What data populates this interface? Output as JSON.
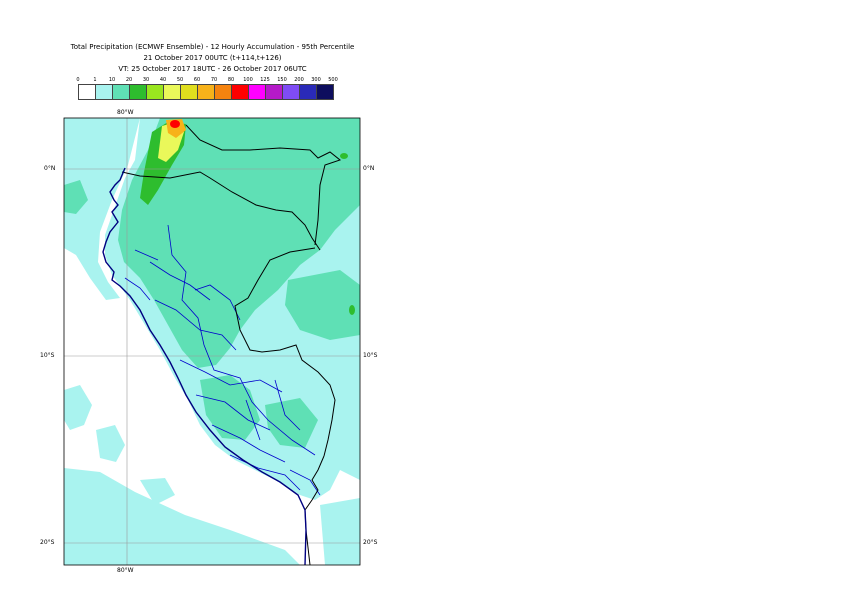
{
  "title": {
    "line1": "Total Precipitation (ECMWF Ensemble) - 12 Hourly Accumulation - 95th Percentile",
    "line2": "21 October 2017 00UTC (t+114,t+126)",
    "line3": "VT: 25 October 2017 18UTC - 26 October 2017 06UTC"
  },
  "legend": {
    "ticks": [
      "0",
      "1",
      "10",
      "20",
      "30",
      "40",
      "50",
      "60",
      "70",
      "80",
      "100",
      "125",
      "150",
      "200",
      "300",
      "500"
    ],
    "colors": [
      "#ffffff",
      "#a9f3ef",
      "#5fe0b5",
      "#2ebd2e",
      "#9ae61f",
      "#eaf85a",
      "#e0de1e",
      "#f7b21a",
      "#f5830f",
      "#ff0000",
      "#ff00ff",
      "#b51ac9",
      "#7f4cf5",
      "#2a2ab8",
      "#0d0d5e"
    ]
  },
  "map": {
    "lon_labels": [
      "80°W",
      "80°W"
    ],
    "lat_labels": {
      "eq": [
        "0°N",
        "0°N"
      ],
      "s10": [
        "10°S",
        "10°S"
      ],
      "s20": [
        "20°S",
        "20°S"
      ]
    },
    "colors": {
      "light": "#a9f3ef",
      "medium": "#5fe0b5",
      "green": "#2ebd2e",
      "yellow": "#eaf85a",
      "orange": "#f7b21a",
      "red": "#ff0000",
      "coast": "#000080",
      "border": "#000000",
      "region": "#0000cc",
      "grid": "#9a9a9a"
    }
  }
}
